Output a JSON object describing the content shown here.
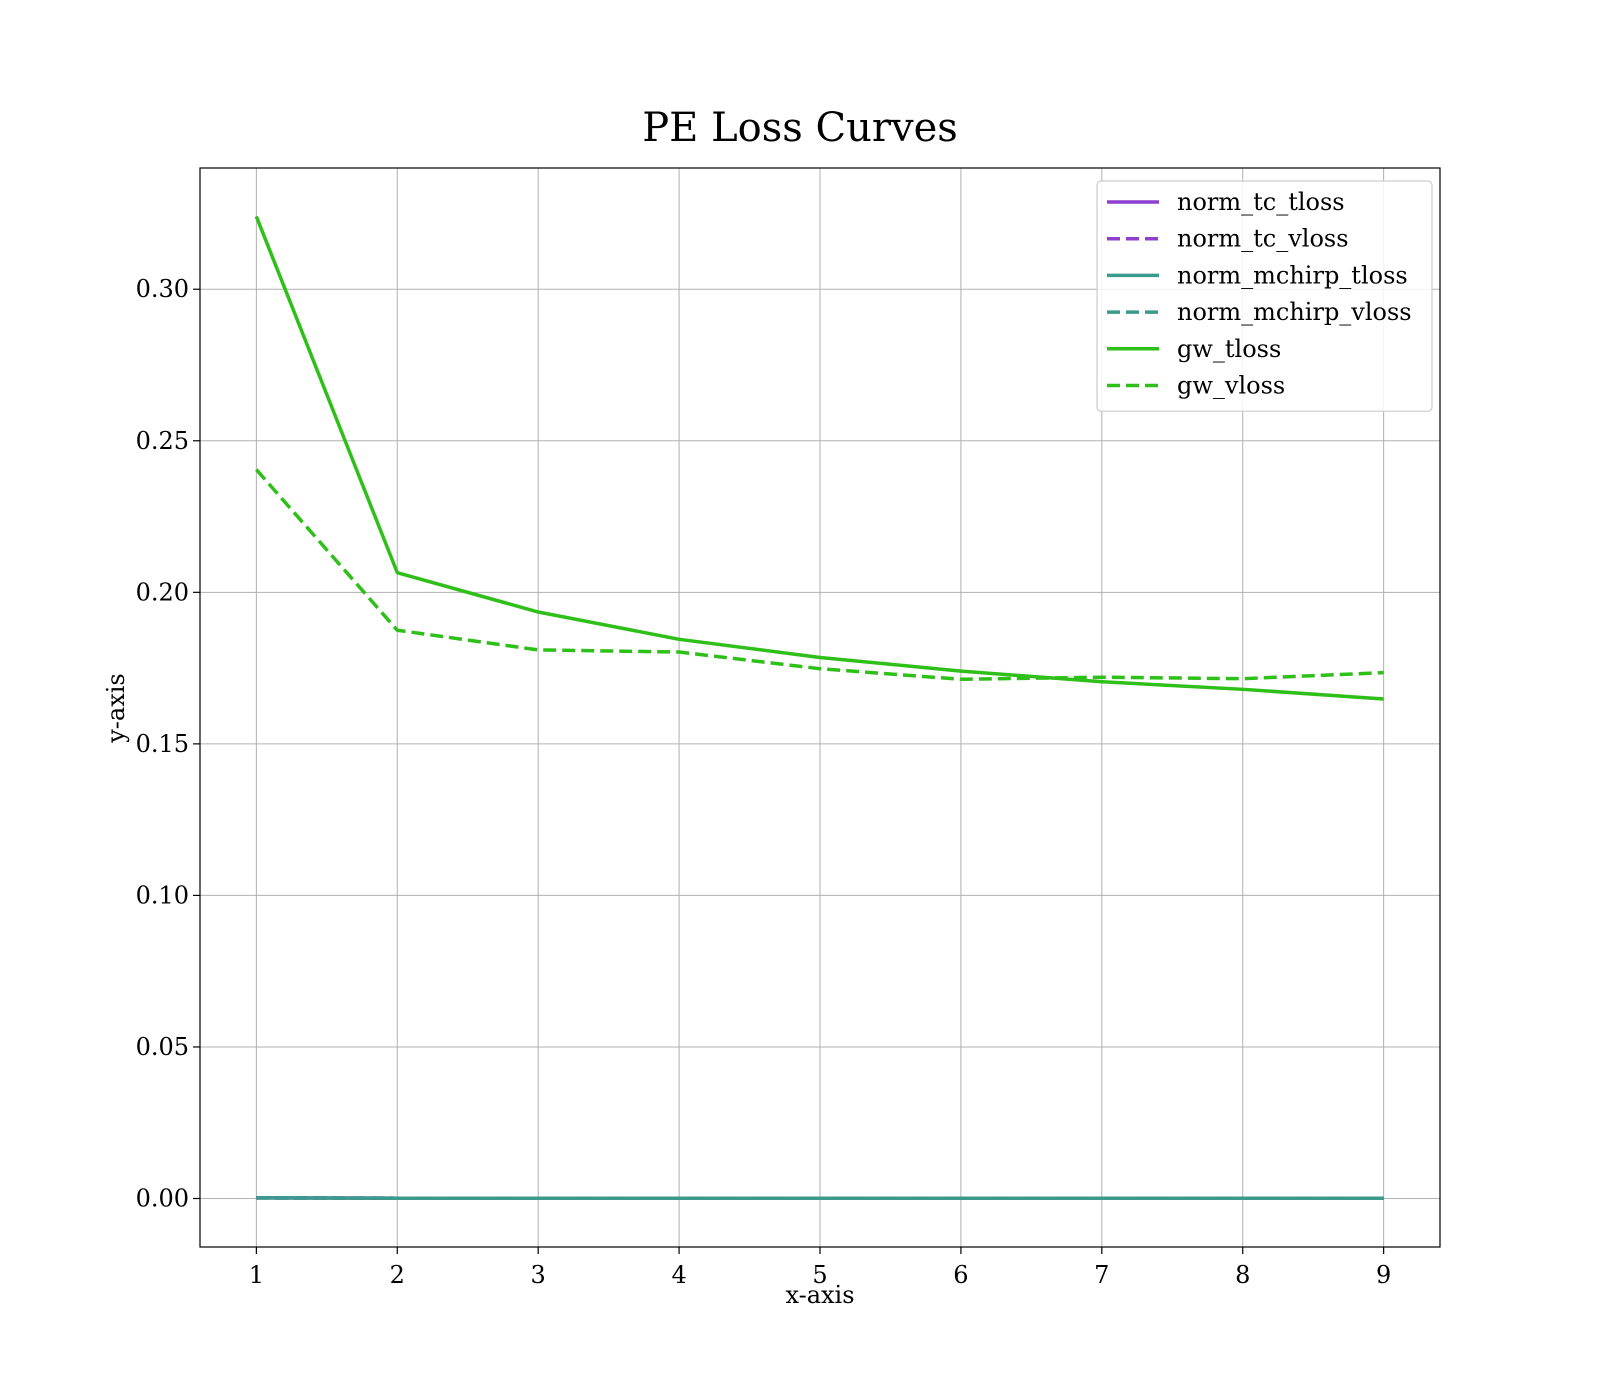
{
  "chart_data": {
    "type": "line",
    "title": "PE Loss Curves",
    "xlabel": "x-axis",
    "ylabel": "y-axis",
    "x": [
      1,
      2,
      3,
      4,
      5,
      6,
      7,
      8,
      9
    ],
    "xlim": [
      0.6,
      9.4
    ],
    "ylim": [
      -0.016,
      0.34
    ],
    "xticks": [
      1,
      2,
      3,
      4,
      5,
      6,
      7,
      8,
      9
    ],
    "yticks": [
      0.0,
      0.05,
      0.1,
      0.15,
      0.2,
      0.25,
      0.3
    ],
    "ytick_labels": [
      "0.00",
      "0.05",
      "0.10",
      "0.15",
      "0.20",
      "0.25",
      "0.30"
    ],
    "grid": true,
    "legend_position": "top-right",
    "series": [
      {
        "name": "norm_tc_tloss",
        "color": "#8e3fce",
        "style": "solid",
        "values": [
          0.0002,
          0.0001,
          0.0001,
          0.0001,
          0.0001,
          0.0001,
          0.0001,
          0.0001,
          0.0001
        ]
      },
      {
        "name": "norm_tc_vloss",
        "color": "#8e3fce",
        "style": "dashed",
        "values": [
          0.0002,
          0.0001,
          0.0001,
          0.0001,
          0.0001,
          0.0001,
          0.0001,
          0.0001,
          0.0001
        ]
      },
      {
        "name": "norm_mchirp_tloss",
        "color": "#3a9a8c",
        "style": "solid",
        "values": [
          0.0002,
          0.0001,
          0.0001,
          0.0001,
          0.0001,
          0.0001,
          0.0001,
          0.0001,
          0.0001
        ]
      },
      {
        "name": "norm_mchirp_vloss",
        "color": "#3a9a8c",
        "style": "dashed",
        "values": [
          0.0002,
          0.0001,
          0.0001,
          0.0001,
          0.0001,
          0.0001,
          0.0001,
          0.0001,
          0.0001
        ]
      },
      {
        "name": "gw_tloss",
        "color": "#2ebf18",
        "style": "solid",
        "values": [
          0.324,
          0.2065,
          0.1935,
          0.1845,
          0.1785,
          0.174,
          0.1705,
          0.168,
          0.1648
        ]
      },
      {
        "name": "gw_vloss",
        "color": "#2ebf18",
        "style": "dashed",
        "values": [
          0.2405,
          0.1875,
          0.181,
          0.1803,
          0.1748,
          0.1713,
          0.172,
          0.1715,
          0.1735
        ]
      }
    ]
  }
}
